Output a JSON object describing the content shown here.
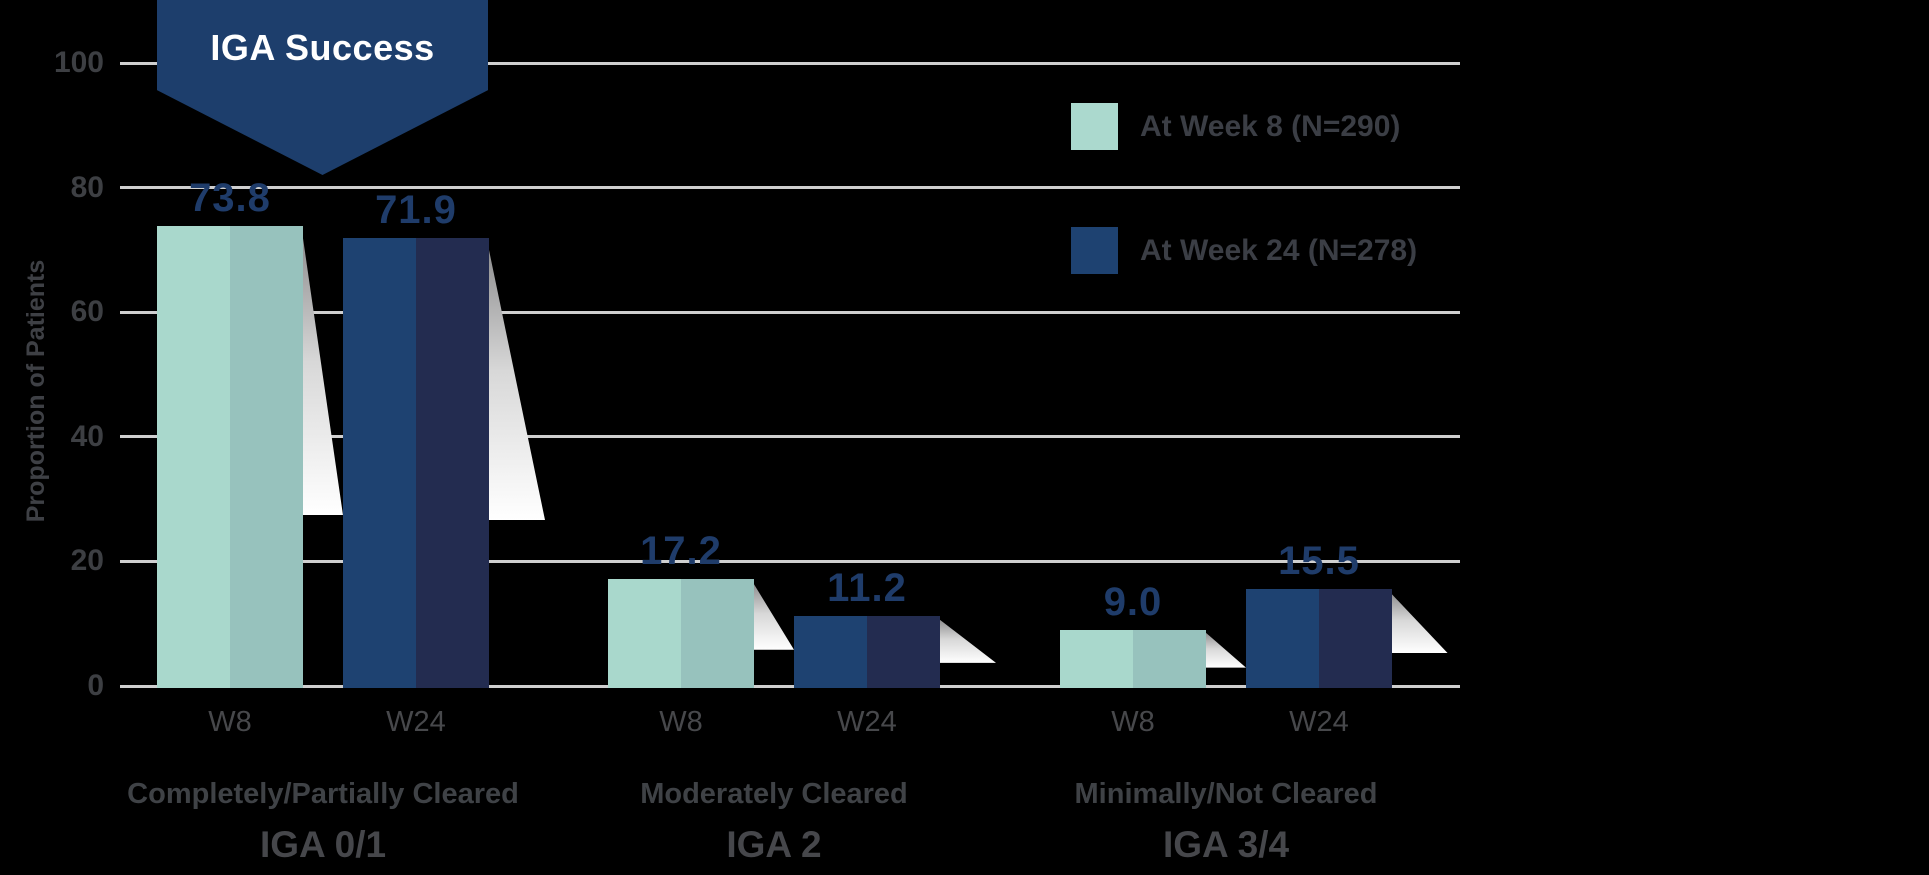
{
  "banner": {
    "title": "IGA Success"
  },
  "y_axis": {
    "title": "Proportion of Patients"
  },
  "legend": {
    "position": "top-right",
    "items": [
      {
        "label": "At Week 8 (N=290)",
        "swatch_color": "#abd9ce"
      },
      {
        "label": "At Week 24 (N=278)",
        "swatch_color": "#1e4271"
      }
    ]
  },
  "chart_data": {
    "type": "bar",
    "title": "IGA Success",
    "xlabel": "",
    "ylabel": "Proportion of Patients",
    "ylim": [
      0,
      100
    ],
    "y_ticks": [
      0,
      20,
      40,
      60,
      80,
      100
    ],
    "grid": true,
    "legend_position": "top-right",
    "categories": [
      "Completely/Partially Cleared (IGA 0/1)",
      "Moderately Cleared (IGA 2)",
      "Minimally/Not Cleared (IGA 3/4)"
    ],
    "group_labels": [
      {
        "line1": "Completely/Partially Cleared",
        "line2": "IGA 0/1"
      },
      {
        "line1": "Moderately Cleared",
        "line2": "IGA 2"
      },
      {
        "line1": "Minimally/Not Cleared",
        "line2": "IGA 3/4"
      }
    ],
    "bar_tick_labels": [
      "W8",
      "W24"
    ],
    "series": [
      {
        "name": "At Week 8 (N=290)",
        "color_left": "#a9d8cc",
        "color_right": "#97c2bd",
        "values": [
          73.8,
          17.2,
          9.0
        ]
      },
      {
        "name": "At Week 24 (N=278)",
        "color_left": "#1e4271",
        "color_right": "#232c50",
        "values": [
          71.9,
          11.2,
          15.5
        ]
      }
    ],
    "value_label_color": "#1f3c6a"
  },
  "colors": {
    "background": "#000000",
    "gridline": "#cfcfcf",
    "axis_text": "#3d3f43",
    "banner_fill": "#1d3e6c",
    "banner_text": "#ffffff"
  }
}
